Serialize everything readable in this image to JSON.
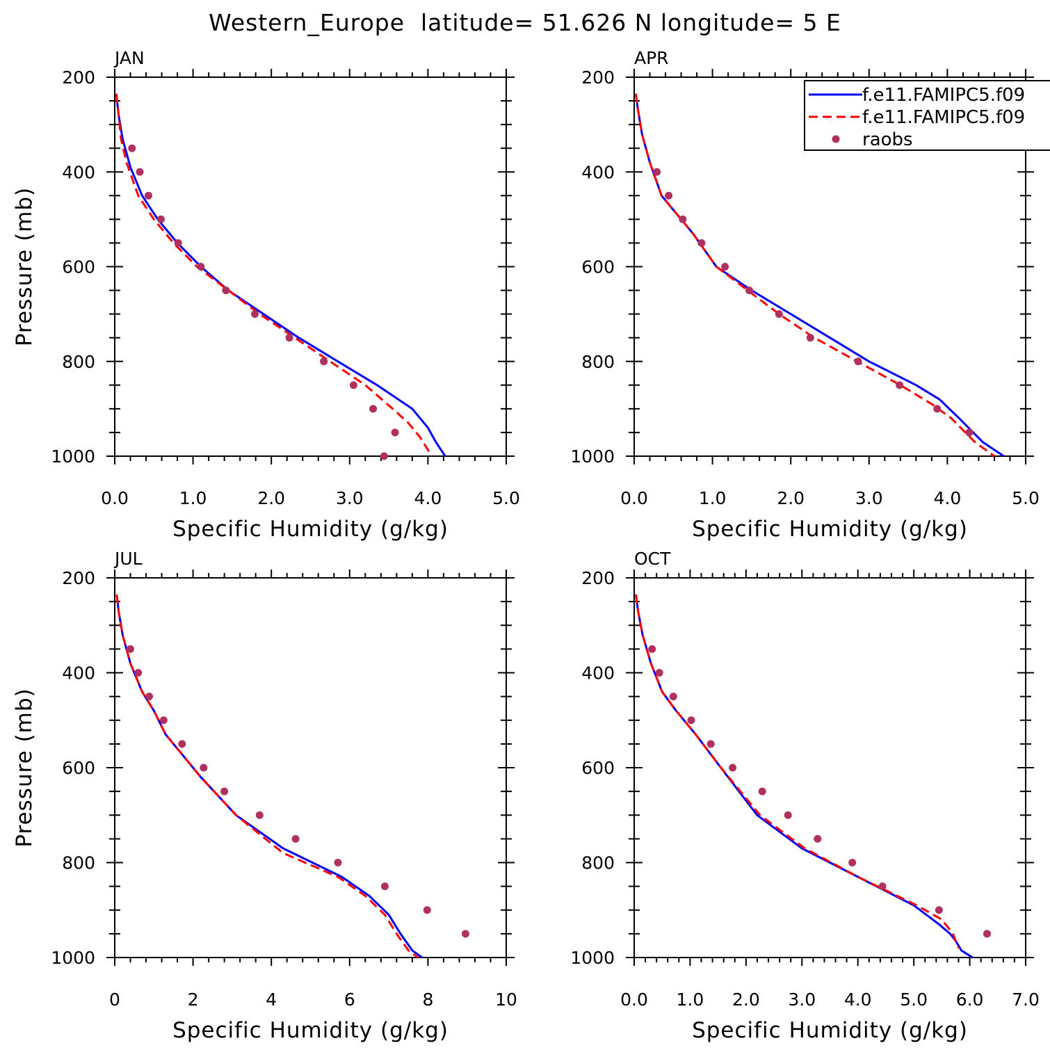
{
  "title": "Western_Europe  latitude= 51.626 N longitude= 5 E",
  "legend": {
    "entries": [
      {
        "label": "f.e11.FAMIPC5.f09",
        "style": "line",
        "color": "#0000ff"
      },
      {
        "label": "f.e11.FAMIPC5.f09",
        "style": "dashed",
        "color": "#ff0000"
      },
      {
        "label": "raobs",
        "style": "marker",
        "color": "#b03060"
      }
    ]
  },
  "colors": {
    "model_1": "#0000ff",
    "model_2": "#ff0000",
    "raobs": "#b03060"
  },
  "chart_data": [
    {
      "type": "line",
      "title": "JAN",
      "xlabel": "Specific Humidity (g/kg)",
      "ylabel": "Pressure (mb)",
      "xlim": [
        0,
        5
      ],
      "ylim": [
        200,
        1000
      ],
      "y_inverted": true,
      "xticks": [
        0,
        1,
        2,
        3,
        4,
        5
      ],
      "xtick_labels": [
        "0.0",
        "1.0",
        "2.0",
        "3.0",
        "4.0",
        "5.0"
      ],
      "yticks": [
        200,
        400,
        600,
        800,
        1000
      ],
      "ytick_labels": [
        "200",
        "400",
        "600",
        "800",
        "1000"
      ],
      "grid": false,
      "series": [
        {
          "name": "f.e11.FAMIPC5.f09",
          "kind": "line",
          "x": [
            0.02,
            0.05,
            0.1,
            0.2,
            0.35,
            0.55,
            0.8,
            1.1,
            1.45,
            1.9,
            2.35,
            2.85,
            3.35,
            3.8,
            4.0,
            4.1,
            4.22
          ],
          "y": [
            235,
            280,
            330,
            390,
            450,
            500,
            550,
            600,
            650,
            700,
            750,
            800,
            850,
            900,
            940,
            970,
            1000
          ]
        },
        {
          "name": "f.e11.FAMIPC5.f09",
          "kind": "dashed",
          "x": [
            0.02,
            0.05,
            0.08,
            0.15,
            0.3,
            0.5,
            0.75,
            1.05,
            1.45,
            1.85,
            2.3,
            2.75,
            3.2,
            3.55,
            3.75,
            3.9,
            4.05
          ],
          "y": [
            235,
            280,
            330,
            380,
            450,
            500,
            550,
            600,
            650,
            700,
            750,
            800,
            850,
            900,
            930,
            960,
            1000
          ]
        },
        {
          "name": "raobs",
          "kind": "marker",
          "x": [
            0.22,
            0.32,
            0.43,
            0.59,
            0.81,
            1.1,
            1.42,
            1.79,
            2.23,
            2.67,
            3.05,
            3.3,
            3.58,
            3.44
          ],
          "y": [
            350,
            400,
            450,
            500,
            550,
            600,
            650,
            700,
            750,
            800,
            850,
            900,
            950,
            1000
          ]
        }
      ]
    },
    {
      "type": "line",
      "title": "APR",
      "xlabel": "Specific Humidity (g/kg)",
      "ylabel": "",
      "xlim": [
        0,
        5
      ],
      "ylim": [
        200,
        1000
      ],
      "y_inverted": true,
      "xticks": [
        0,
        1,
        2,
        3,
        4,
        5
      ],
      "xtick_labels": [
        "0.0",
        "1.0",
        "2.0",
        "3.0",
        "4.0",
        "5.0"
      ],
      "yticks": [
        200,
        400,
        600,
        800,
        1000
      ],
      "ytick_labels": [
        "200",
        "400",
        "600",
        "800",
        "1000"
      ],
      "grid": false,
      "legend": "top-right",
      "series": [
        {
          "name": "f.e11.FAMIPC5.f09",
          "kind": "line",
          "x": [
            0.02,
            0.05,
            0.1,
            0.2,
            0.35,
            0.5,
            0.75,
            1.05,
            1.5,
            2.0,
            2.5,
            3.0,
            3.6,
            3.9,
            4.15,
            4.45,
            4.72
          ],
          "y": [
            235,
            270,
            320,
            380,
            450,
            480,
            530,
            600,
            650,
            700,
            750,
            800,
            850,
            880,
            920,
            970,
            1000
          ]
        },
        {
          "name": "f.e11.FAMIPC5.f09",
          "kind": "dashed",
          "x": [
            0.02,
            0.05,
            0.1,
            0.2,
            0.35,
            0.5,
            0.75,
            1.05,
            1.45,
            1.85,
            2.3,
            2.85,
            3.4,
            3.8,
            4.05,
            4.35,
            4.6
          ],
          "y": [
            235,
            270,
            320,
            380,
            450,
            480,
            530,
            600,
            650,
            700,
            750,
            800,
            850,
            890,
            920,
            970,
            1000
          ]
        },
        {
          "name": "raobs",
          "kind": "marker",
          "x": [
            0.29,
            0.44,
            0.62,
            0.86,
            1.16,
            1.47,
            1.85,
            2.25,
            2.86,
            3.39,
            3.87,
            4.28
          ],
          "y": [
            400,
            450,
            500,
            550,
            600,
            650,
            700,
            750,
            800,
            850,
            900,
            950
          ]
        }
      ]
    },
    {
      "type": "line",
      "title": "JUL",
      "xlabel": "Specific Humidity (g/kg)",
      "ylabel": "Pressure (mb)",
      "xlim": [
        0,
        10
      ],
      "ylim": [
        200,
        1000
      ],
      "y_inverted": true,
      "xticks": [
        0,
        2,
        4,
        6,
        8,
        10
      ],
      "xtick_labels": [
        "0",
        "2",
        "4",
        "6",
        "8",
        "10"
      ],
      "yticks": [
        200,
        400,
        600,
        800,
        1000
      ],
      "ytick_labels": [
        "200",
        "400",
        "600",
        "800",
        "1000"
      ],
      "grid": false,
      "series": [
        {
          "name": "f.e11.FAMIPC5.f09",
          "kind": "line",
          "x": [
            0.05,
            0.1,
            0.2,
            0.4,
            0.7,
            1.0,
            1.3,
            1.7,
            2.2,
            3.1,
            4.3,
            5.8,
            6.5,
            7.0,
            7.3,
            7.6,
            7.85
          ],
          "y": [
            235,
            270,
            320,
            380,
            440,
            480,
            530,
            570,
            620,
            700,
            770,
            830,
            870,
            910,
            950,
            985,
            1000
          ]
        },
        {
          "name": "f.e11.FAMIPC5.f09",
          "kind": "dashed",
          "x": [
            0.05,
            0.1,
            0.2,
            0.4,
            0.7,
            1.0,
            1.3,
            1.7,
            2.2,
            3.1,
            4.3,
            5.7,
            6.4,
            6.9,
            7.2,
            7.5,
            7.75
          ],
          "y": [
            235,
            270,
            320,
            380,
            440,
            480,
            530,
            570,
            620,
            700,
            780,
            830,
            870,
            910,
            950,
            985,
            1000
          ]
        },
        {
          "name": "raobs",
          "kind": "marker",
          "x": [
            0.4,
            0.6,
            0.88,
            1.25,
            1.72,
            2.27,
            2.8,
            3.7,
            4.62,
            5.7,
            6.9,
            7.98,
            8.96
          ],
          "y": [
            350,
            400,
            450,
            500,
            550,
            600,
            650,
            700,
            750,
            800,
            850,
            900,
            950
          ]
        }
      ]
    },
    {
      "type": "line",
      "title": "OCT",
      "xlabel": "Specific Humidity (g/kg)",
      "ylabel": "",
      "xlim": [
        0,
        7
      ],
      "ylim": [
        200,
        1000
      ],
      "y_inverted": true,
      "xticks": [
        0,
        1,
        2,
        3,
        4,
        5,
        6,
        7
      ],
      "xtick_labels": [
        "0.0",
        "1.0",
        "2.0",
        "3.0",
        "4.0",
        "5.0",
        "6.0",
        "7.0"
      ],
      "yticks": [
        200,
        400,
        600,
        800,
        1000
      ],
      "ytick_labels": [
        "200",
        "400",
        "600",
        "800",
        "1000"
      ],
      "grid": false,
      "series": [
        {
          "name": "f.e11.FAMIPC5.f09",
          "kind": "line",
          "x": [
            0.03,
            0.07,
            0.15,
            0.3,
            0.5,
            0.75,
            1.1,
            1.55,
            2.2,
            3.0,
            4.0,
            5.0,
            5.45,
            5.65,
            5.75,
            5.85,
            6.05
          ],
          "y": [
            235,
            270,
            320,
            380,
            440,
            480,
            530,
            600,
            700,
            770,
            830,
            890,
            930,
            950,
            965,
            985,
            1000
          ]
        },
        {
          "name": "f.e11.FAMIPC5.f09",
          "kind": "dashed",
          "x": [
            0.03,
            0.07,
            0.15,
            0.3,
            0.5,
            0.75,
            1.1,
            1.55,
            2.25,
            3.05,
            4.0,
            5.05,
            5.5,
            5.7,
            5.8
          ],
          "y": [
            235,
            270,
            320,
            380,
            440,
            480,
            530,
            600,
            700,
            770,
            830,
            890,
            920,
            950,
            980
          ]
        },
        {
          "name": "raobs",
          "kind": "marker",
          "x": [
            0.32,
            0.45,
            0.7,
            1.02,
            1.37,
            1.76,
            2.29,
            2.75,
            3.28,
            3.9,
            4.44,
            5.45,
            6.31
          ],
          "y": [
            350,
            400,
            450,
            500,
            550,
            600,
            650,
            700,
            750,
            800,
            850,
            900,
            950
          ]
        }
      ]
    }
  ]
}
